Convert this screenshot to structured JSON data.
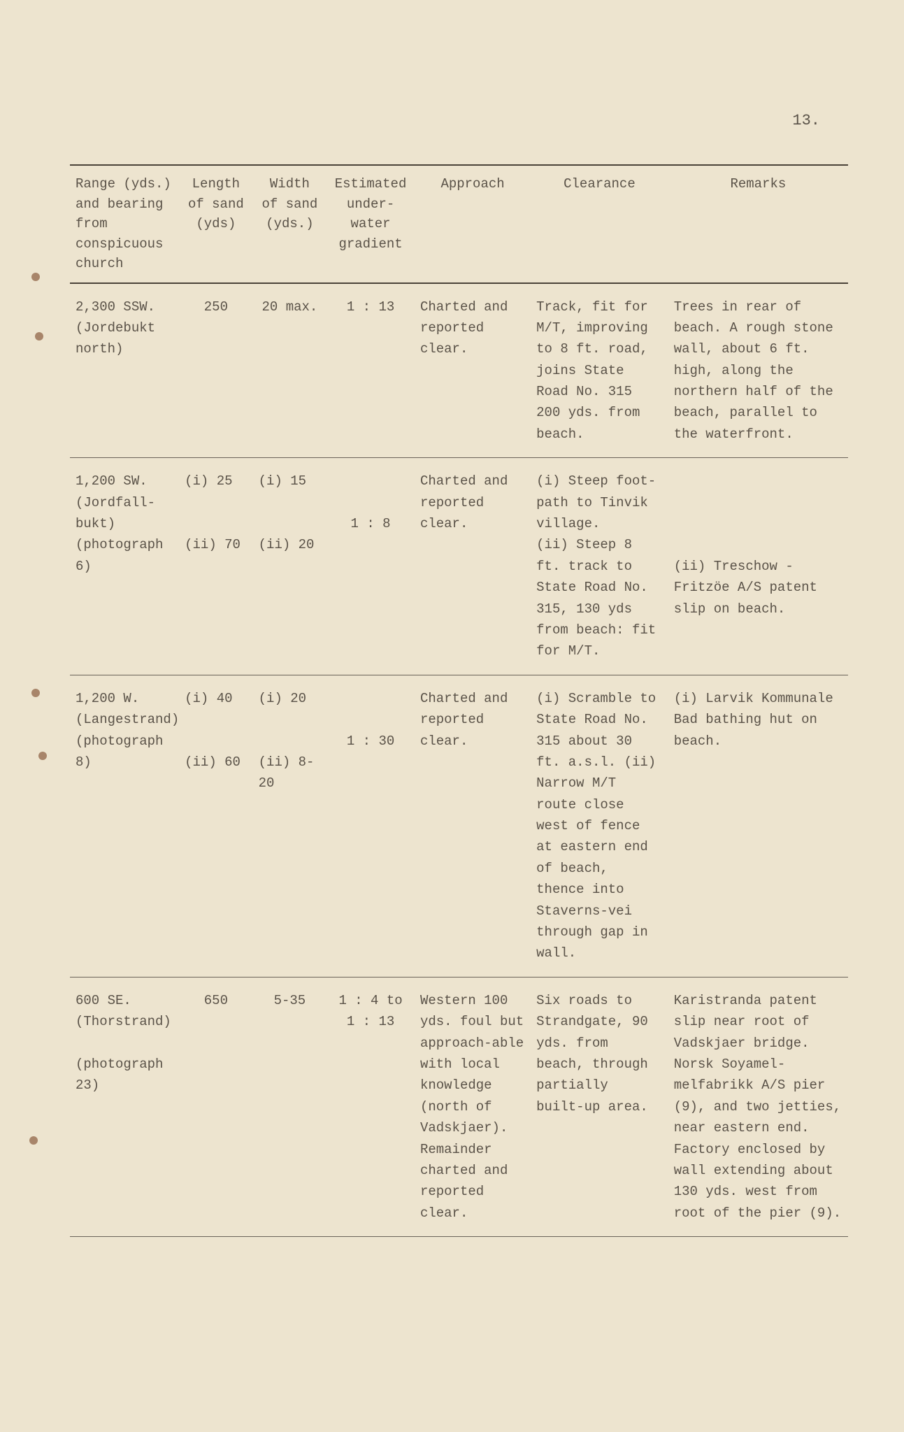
{
  "page_number": "13.",
  "headers": {
    "range": "Range (yds.) and bearing from conspicuous church",
    "length": "Length of sand (yds)",
    "width": "Width of sand (yds.)",
    "gradient": "Estimated under-water gradient",
    "approach": "Approach",
    "clearance": "Clearance",
    "remarks": "Remarks"
  },
  "rows": [
    {
      "range": "2,300 SSW. (Jordebukt north)",
      "length": "250",
      "width": "20 max.",
      "gradient": "1 : 13",
      "approach": "Charted and reported clear.",
      "clearance": "Track, fit for M/T, improving to 8 ft. road, joins State Road No. 315 200 yds. from beach.",
      "remarks": "Trees in rear of beach. A rough stone wall, about 6 ft. high, along the northern half of the beach, parallel to the waterfront."
    },
    {
      "range": "1,200 SW. (Jordfall-bukt) (photograph 6)",
      "length": "(i)  25\n\n\n(ii) 70",
      "width": "(i)  15\n\n\n(ii) 20",
      "gradient": "\n\n1 : 8",
      "approach": "Charted and reported clear.",
      "clearance": "(i) Steep foot-path to Tinvik village.\n(ii) Steep 8 ft. track to State Road No. 315, 130 yds from beach: fit for M/T.",
      "remarks": "\n\n\n\n(ii) Treschow - Fritzöe A/S patent slip on beach."
    },
    {
      "range": "1,200 W. (Langestrand) (photograph 8)",
      "length": "(i)  40\n\n\n(ii) 60",
      "width": "(i)  20\n\n\n(ii) 8-20",
      "gradient": "\n\n1 : 30",
      "approach": "Charted and reported clear.",
      "clearance": "(i) Scramble to State Road No. 315 about 30 ft. a.s.l. (ii) Narrow M/T route close west of fence at eastern end of beach, thence into Staverns-vei through gap in wall.",
      "remarks": "(i) Larvik Kommunale Bad bathing hut on beach."
    },
    {
      "range": "600 SE. (Thorstrand)\n\n(photograph 23)",
      "length": "650",
      "width": "5-35",
      "gradient": "1 : 4 to 1 : 13",
      "approach": "Western 100 yds. foul but approach-able with local knowledge (north of Vadskjaer). Remainder charted and reported clear.",
      "clearance": "Six roads to Strandgate, 90 yds. from beach, through partially built-up area.",
      "remarks": "Karistranda patent slip near root of Vadskjaer bridge. Norsk Soyamel-melfabrikk A/S pier (9), and two jetties, near eastern end. Factory enclosed by wall extending about 130 yds. west from root of the pier (9)."
    }
  ],
  "colors": {
    "page_background": "#ede4cf",
    "text_color": "#5a5248",
    "border_color": "#4a4238",
    "outer_background": "#2a2a2a"
  }
}
